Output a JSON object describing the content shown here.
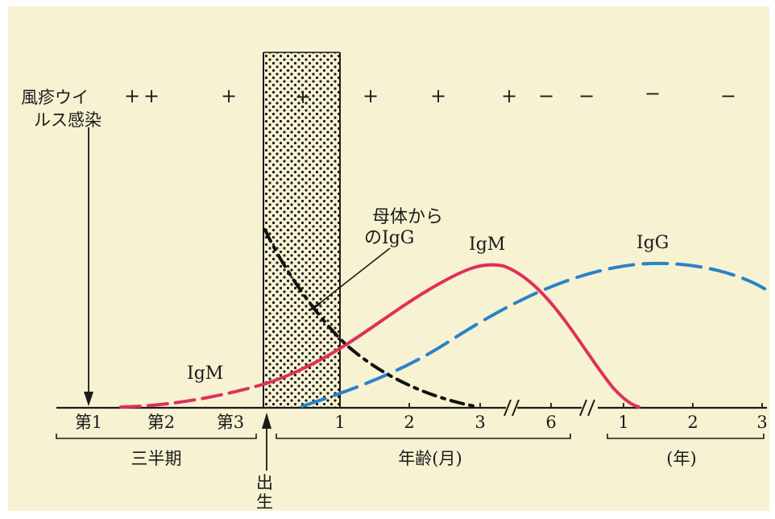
{
  "colors": {
    "paper": "#f6f2d2",
    "ink": "#1a1a1a",
    "igm": "#e0305a",
    "igg": "#2a82c8",
    "maternal": "#111111"
  },
  "infection": {
    "label_line1": "風疹ウイ",
    "label_line2": "ルス感染"
  },
  "virus_signs": [
    "+",
    "+",
    "+",
    "+",
    "+",
    "+",
    "+",
    "−",
    "−",
    "−",
    "−"
  ],
  "trimesters": {
    "ticks": [
      "第1",
      "第2",
      "第3"
    ],
    "group_label": "三半期"
  },
  "months": {
    "ticks": [
      "1",
      "2",
      "3",
      "6"
    ],
    "group_label": "年齢(月)"
  },
  "years": {
    "ticks": [
      "1",
      "2",
      "3"
    ],
    "group_label": "(年)"
  },
  "birth": {
    "label_line1": "出",
    "label_line2": "生"
  },
  "annotations": {
    "maternal_igg_line1": "母体から",
    "maternal_igg_line2": "のIgG",
    "igm_fetal": "IgM",
    "igm_peak": "IgM",
    "igg_peak": "IgG"
  },
  "icons": {
    "infection_arrow": "down-arrow-icon",
    "birth_arrow": "up-arrow-icon"
  }
}
